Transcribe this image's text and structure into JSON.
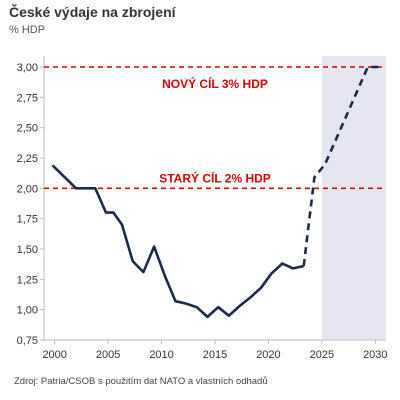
{
  "title": "České výdaje na zbrojení",
  "subtitle": "% HDP",
  "source": "Zdroj: Patria/CSOB s použitím dat NATO a vlastních odhadů",
  "colors": {
    "line": "#1b2a4a",
    "target": "#d40000",
    "forecast_band": "#e6e6f2",
    "axis_text": "#333333"
  },
  "chart_data": {
    "type": "line",
    "title": "České výdaje na zbrojení",
    "ylabel": "% HDP",
    "xlim": [
      1999,
      2031
    ],
    "ylim": [
      0.75,
      3.0
    ],
    "x_ticks": [
      2000,
      2005,
      2010,
      2015,
      2020,
      2025,
      2030
    ],
    "x_tick_labels": [
      "2000",
      "2005",
      "2010",
      "2015",
      "2020",
      "2025",
      "2030"
    ],
    "y_ticks": [
      0.75,
      1.0,
      1.25,
      1.5,
      1.75,
      2.0,
      2.25,
      2.5,
      2.75,
      3.0
    ],
    "y_tick_labels": [
      "0,75",
      "1,00",
      "1,25",
      "1,50",
      "1,75",
      "2,00",
      "2,25",
      "2,50",
      "2,75",
      "3,00"
    ],
    "forecast_region": [
      2025,
      2031
    ],
    "series": [
      {
        "style": "solid",
        "x": [
          1999.8,
          2002,
          2003,
          2003.8,
          2004.8,
          2005.5,
          2006.3,
          2007.3,
          2008.3,
          2009.3,
          2010.3,
          2011.3,
          2012.3,
          2013.3,
          2014.3,
          2015.3,
          2016.3,
          2017.3,
          2018.3,
          2019.3,
          2020.3,
          2021.3,
          2022.3,
          2023.3
        ],
        "y": [
          2.19,
          2.0,
          2.0,
          2.0,
          1.8,
          1.8,
          1.7,
          1.4,
          1.31,
          1.52,
          1.28,
          1.07,
          1.05,
          1.02,
          0.94,
          1.02,
          0.95,
          1.03,
          1.1,
          1.18,
          1.3,
          1.38,
          1.34,
          1.36
        ]
      },
      {
        "style": "dashed",
        "x": [
          2023.3,
          2024.3,
          2025.3,
          2026.3,
          2027.3,
          2028.3,
          2029.3,
          2030.3
        ],
        "y": [
          1.36,
          2.09,
          2.2,
          2.4,
          2.6,
          2.8,
          3.0,
          3.0
        ]
      }
    ],
    "reference_lines": [
      {
        "y": 3.0,
        "label": "NOVÝ CÍL 3% HDP"
      },
      {
        "y": 2.0,
        "label": "STARÝ CÍL 2% HDP"
      }
    ],
    "grid": false,
    "legend": "none"
  }
}
